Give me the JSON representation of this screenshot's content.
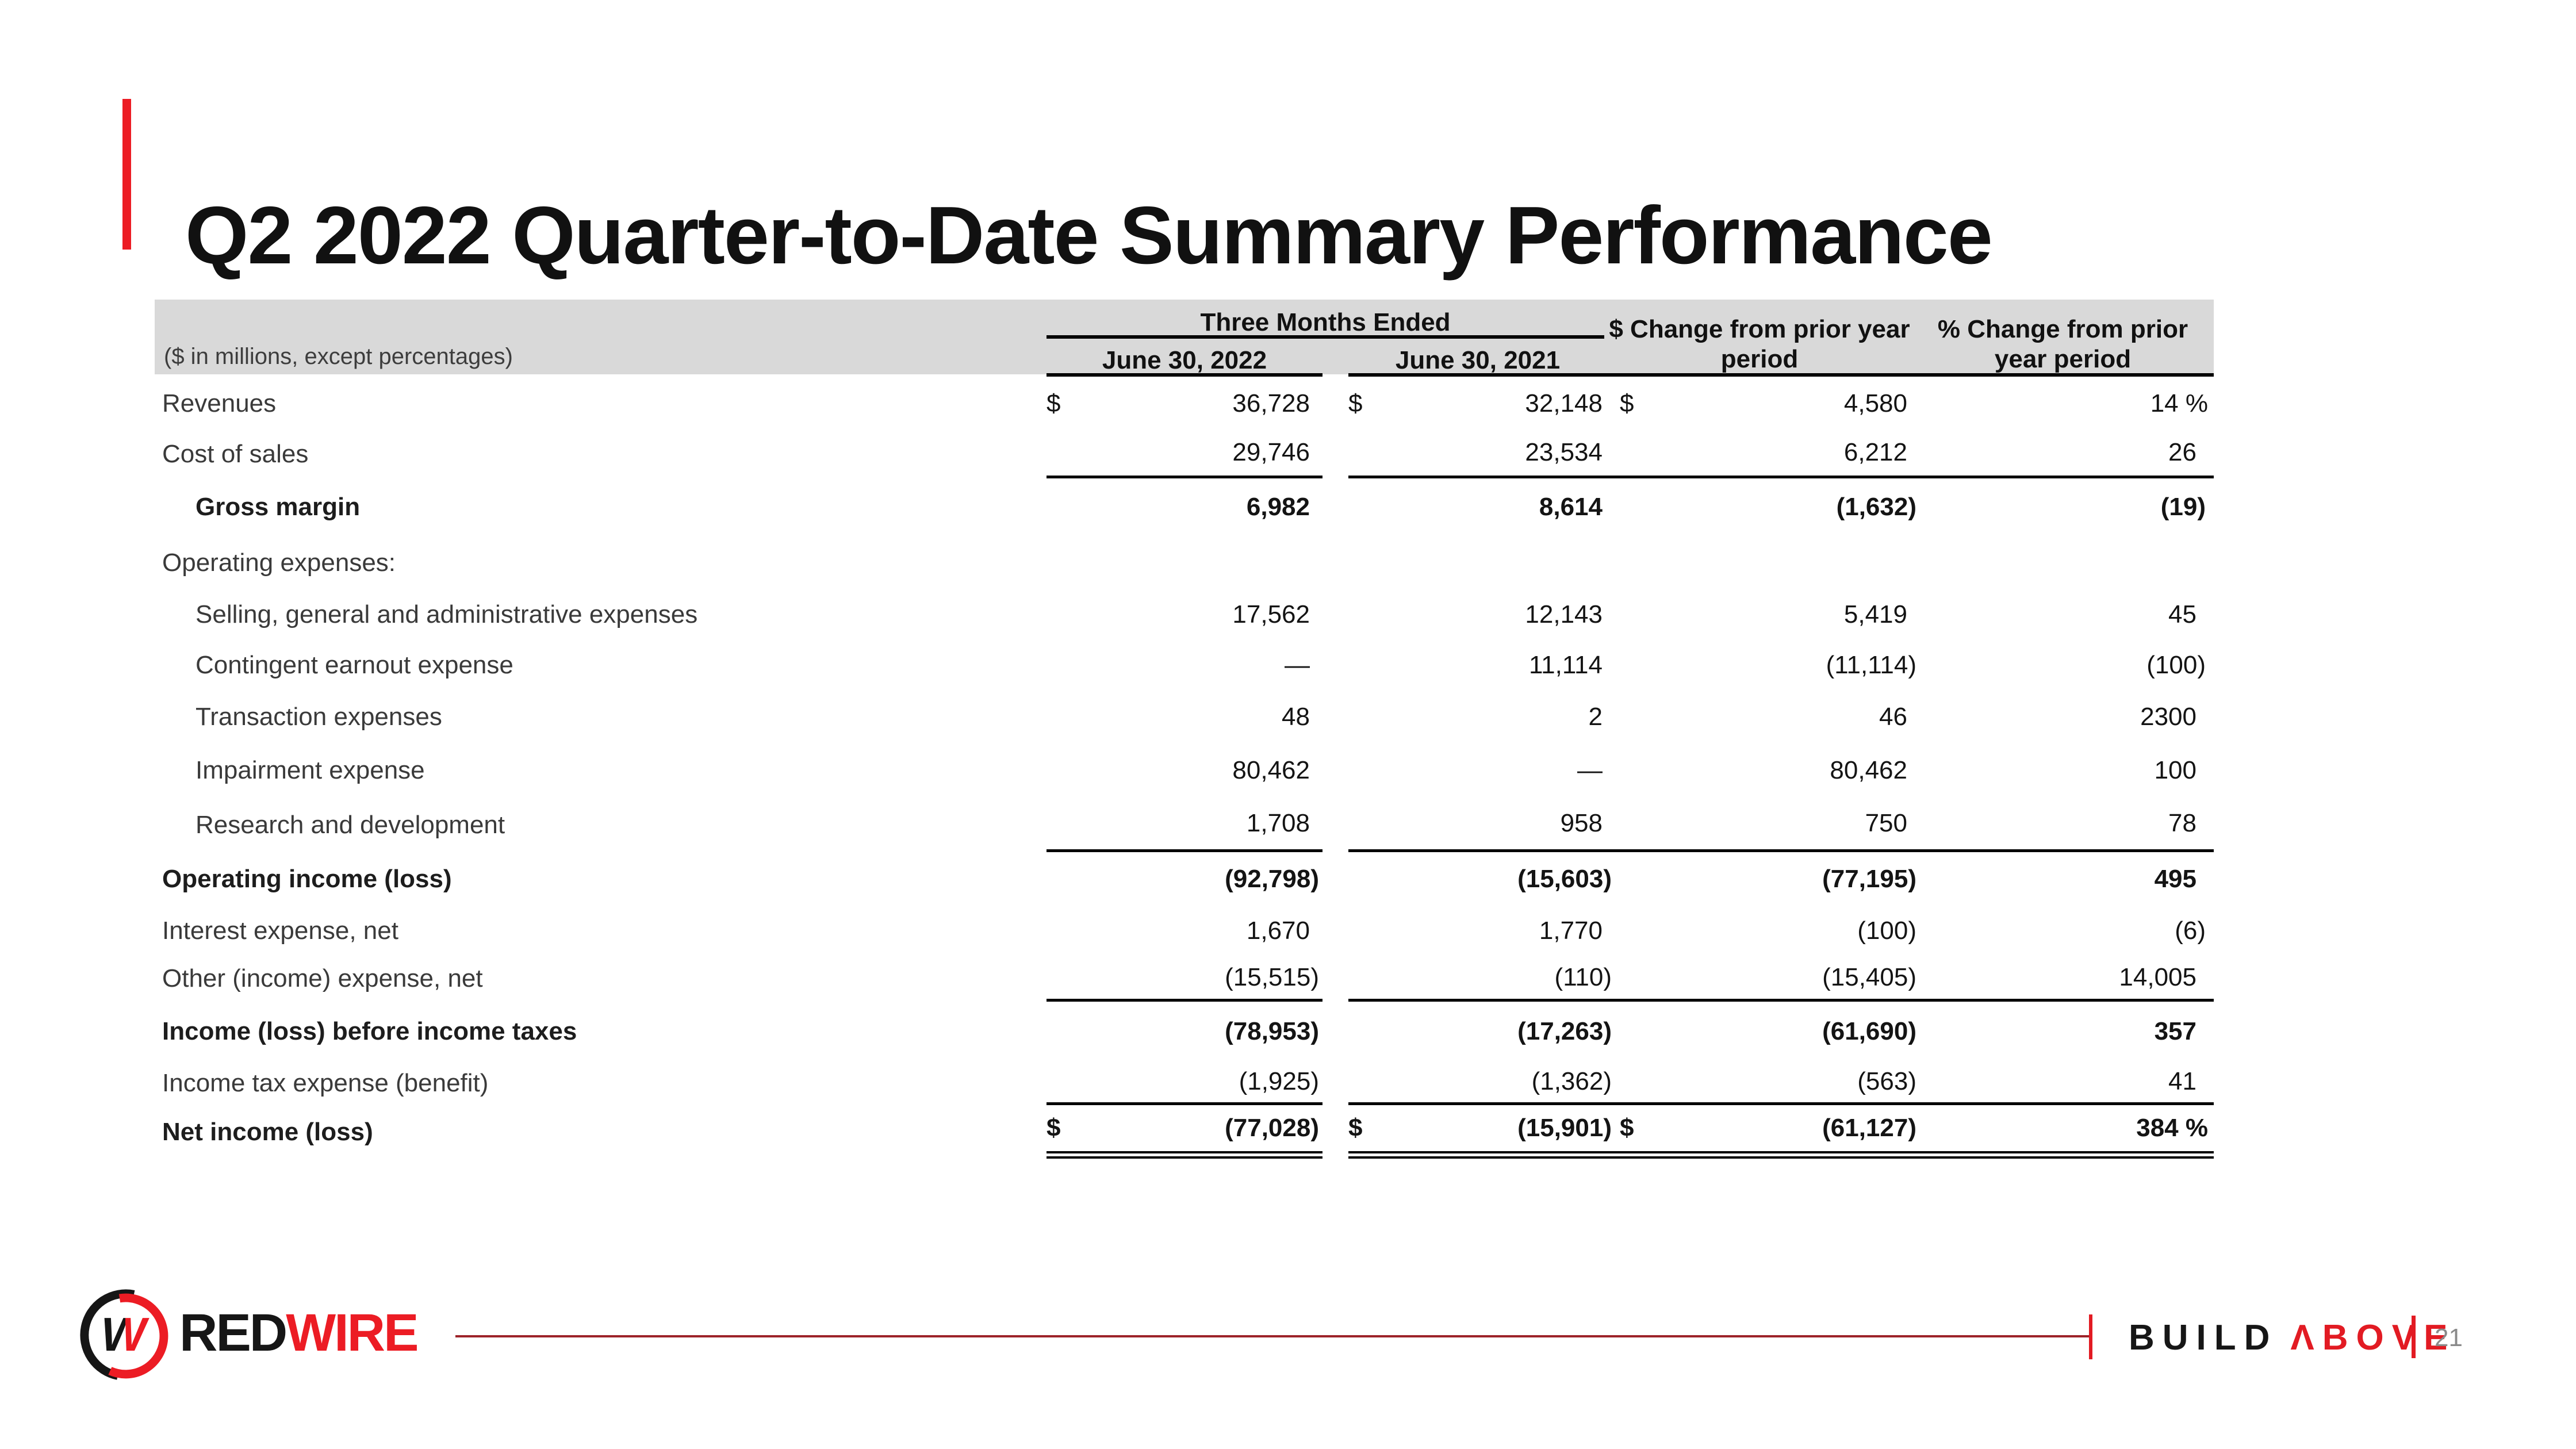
{
  "slide": {
    "title": "Q2 2022 Quarter-to-Date Summary Performance",
    "colors": {
      "accent_red": "#EC1C24",
      "footer_line_red": "#9D2329",
      "tagline_red": "#E21B23",
      "header_band_gray": "#D9D9D9",
      "page_number_gray": "#8a8a8a"
    }
  },
  "table": {
    "note": "($ in millions, except percentages)",
    "header": {
      "group": "Three Months Ended",
      "col_2022": "June 30, 2022",
      "col_2021": "June 30, 2021",
      "dollar_change_line1": "$ Change from prior year",
      "dollar_change_line2": "period",
      "pct_change_line1": "% Change from prior",
      "pct_change_line2": "year period"
    },
    "rows": [
      {
        "label": "Revenues",
        "indent": false,
        "bold": false,
        "dollar": true,
        "border": "",
        "c1": "36,728",
        "c2": "32,148",
        "c3": "4,580",
        "c4": "14 %"
      },
      {
        "label": "Cost of sales",
        "indent": false,
        "bold": false,
        "dollar": false,
        "border": "single",
        "c1": "29,746",
        "c2": "23,534",
        "c3": "6,212",
        "c4": "26"
      },
      {
        "label": "Gross margin",
        "indent": true,
        "bold": true,
        "dollar": false,
        "border": "",
        "c1": "6,982",
        "c2": "8,614",
        "c3": "(1,632)",
        "c4": "(19)"
      },
      {
        "label": "Operating expenses:",
        "indent": false,
        "bold": false,
        "dollar": false,
        "border": "",
        "c1": "",
        "c2": "",
        "c3": "",
        "c4": ""
      },
      {
        "label": "Selling, general and administrative expenses",
        "indent": true,
        "bold": false,
        "dollar": false,
        "border": "",
        "c1": "17,562",
        "c2": "12,143",
        "c3": "5,419",
        "c4": "45"
      },
      {
        "label": "Contingent earnout expense",
        "indent": true,
        "bold": false,
        "dollar": false,
        "border": "",
        "c1": "—",
        "c2": "11,114",
        "c3": "(11,114)",
        "c4": "(100)"
      },
      {
        "label": "Transaction expenses",
        "indent": true,
        "bold": false,
        "dollar": false,
        "border": "",
        "c1": "48",
        "c2": "2",
        "c3": "46",
        "c4": "2300"
      },
      {
        "label": "Impairment expense",
        "indent": true,
        "bold": false,
        "dollar": false,
        "border": "",
        "c1": "80,462",
        "c2": "—",
        "c3": "80,462",
        "c4": "100"
      },
      {
        "label": "Research and development",
        "indent": true,
        "bold": false,
        "dollar": false,
        "border": "single",
        "c1": "1,708",
        "c2": "958",
        "c3": "750",
        "c4": "78"
      },
      {
        "label": "Operating income (loss)",
        "indent": false,
        "bold": true,
        "dollar": false,
        "border": "",
        "c1": "(92,798)",
        "c2": "(15,603)",
        "c3": "(77,195)",
        "c4": "495"
      },
      {
        "label": "Interest expense, net",
        "indent": false,
        "bold": false,
        "dollar": false,
        "border": "",
        "c1": "1,670",
        "c2": "1,770",
        "c3": "(100)",
        "c4": "(6)"
      },
      {
        "label": "Other (income) expense, net",
        "indent": false,
        "bold": false,
        "dollar": false,
        "border": "single",
        "c1": "(15,515)",
        "c2": "(110)",
        "c3": "(15,405)",
        "c4": "14,005"
      },
      {
        "label": "Income (loss) before income taxes",
        "indent": false,
        "bold": true,
        "dollar": false,
        "border": "",
        "c1": "(78,953)",
        "c2": "(17,263)",
        "c3": "(61,690)",
        "c4": "357"
      },
      {
        "label": "Income tax expense (benefit)",
        "indent": false,
        "bold": false,
        "dollar": false,
        "border": "single",
        "c1": "(1,925)",
        "c2": "(1,362)",
        "c3": "(563)",
        "c4": "41"
      },
      {
        "label": "Net income (loss)",
        "indent": false,
        "bold": true,
        "dollar": true,
        "border": "double",
        "c1": "(77,028)",
        "c2": "(15,901)",
        "c3": "(61,127)",
        "c4": "384 %"
      }
    ],
    "currency_symbol": "$"
  },
  "footer": {
    "brand_black": "RED",
    "brand_red": "WIRE",
    "tagline_black": "BUILD",
    "tagline_red": "ΛBOVE",
    "page_number": "21"
  }
}
